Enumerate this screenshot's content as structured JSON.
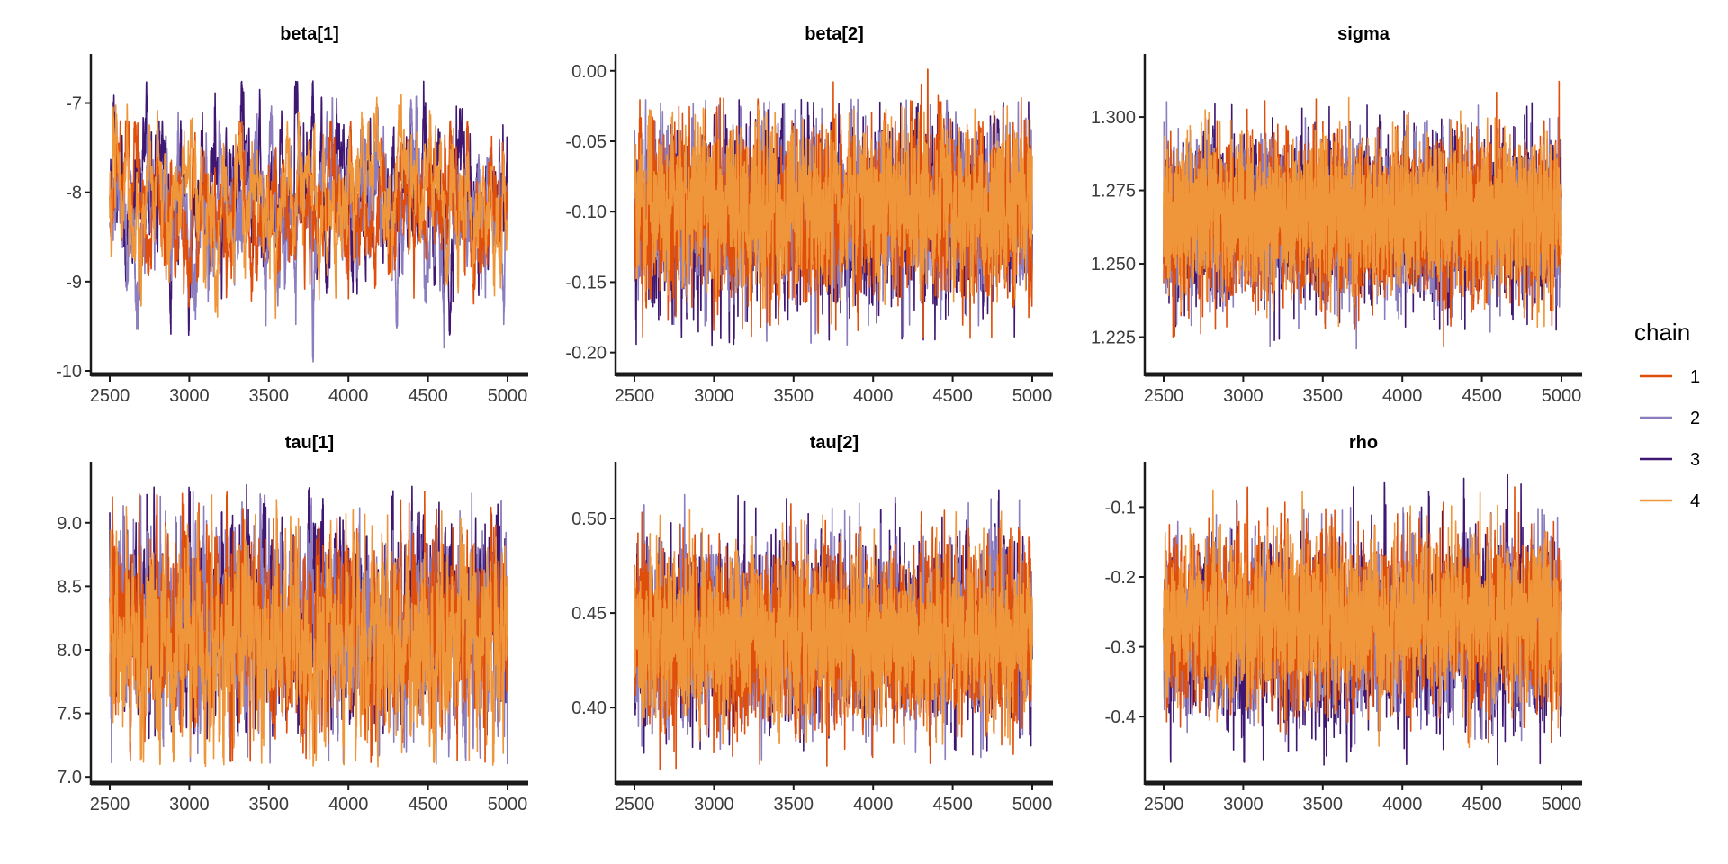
{
  "chart_data": {
    "type": "line",
    "title": "",
    "subtitle": "",
    "figure_kind": "MCMC trace plots (faceted)",
    "legend": {
      "title": "chain",
      "placement": "right",
      "entries": [
        {
          "label": "1",
          "color": "#E04E0B"
        },
        {
          "label": "2",
          "color": "#8B7DBE"
        },
        {
          "label": "3",
          "color": "#3F1671"
        },
        {
          "label": "4",
          "color": "#F0963A"
        }
      ]
    },
    "draw_order": [
      "3",
      "2",
      "1",
      "4"
    ],
    "x": {
      "label": "",
      "start": 2500,
      "end": 5000,
      "ticks": [
        2500,
        3000,
        3500,
        4000,
        4500,
        5000
      ],
      "tick_labels": [
        "2500",
        "3000",
        "3500",
        "4000",
        "4500",
        "5000"
      ]
    },
    "grid": false,
    "panels": [
      {
        "id": "beta1",
        "title": "beta[1]",
        "row": 0,
        "col": 0,
        "ylim": [
          -10,
          -6.45
        ],
        "yticks": [
          -7,
          -8,
          -9,
          -10
        ],
        "ytick_labels": [
          "-7",
          "-8",
          "-9",
          "-10"
        ],
        "series": [
          {
            "chain": "1",
            "mean": -8.15,
            "sd": 0.42,
            "min": -9.4,
            "max": -7.2,
            "autocorr": 0.93
          },
          {
            "chain": "2",
            "mean": -8.2,
            "sd": 0.48,
            "min": -9.9,
            "max": -6.9,
            "autocorr": 0.93
          },
          {
            "chain": "3",
            "mean": -8.05,
            "sd": 0.5,
            "min": -9.6,
            "max": -6.75,
            "autocorr": 0.93
          },
          {
            "chain": "4",
            "mean": -8.1,
            "sd": 0.42,
            "min": -9.55,
            "max": -6.55,
            "autocorr": 0.93
          }
        ]
      },
      {
        "id": "beta2",
        "title": "beta[2]",
        "row": 0,
        "col": 1,
        "ylim": [
          -0.213,
          0.012
        ],
        "yticks": [
          0.0,
          -0.05,
          -0.1,
          -0.15,
          -0.2
        ],
        "ytick_labels": [
          "0.00",
          "-0.05",
          "-0.10",
          "-0.15",
          "-0.20"
        ],
        "series": [
          {
            "chain": "1",
            "mean": -0.1,
            "sd": 0.03,
            "min": -0.19,
            "max": 0.005,
            "autocorr": 0.55
          },
          {
            "chain": "2",
            "mean": -0.1,
            "sd": 0.03,
            "min": -0.195,
            "max": -0.02,
            "autocorr": 0.55
          },
          {
            "chain": "3",
            "mean": -0.105,
            "sd": 0.032,
            "min": -0.195,
            "max": -0.02,
            "autocorr": 0.55
          },
          {
            "chain": "4",
            "mean": -0.095,
            "sd": 0.028,
            "min": -0.205,
            "max": -0.025,
            "autocorr": 0.55
          }
        ]
      },
      {
        "id": "sigma",
        "title": "sigma",
        "row": 0,
        "col": 2,
        "ylim": [
          1.2135,
          1.3215
        ],
        "yticks": [
          1.3,
          1.275,
          1.25,
          1.225
        ],
        "ytick_labels": [
          "1.300",
          "1.275",
          "1.250",
          "1.225"
        ],
        "series": [
          {
            "chain": "1",
            "mean": 1.266,
            "sd": 0.013,
            "min": 1.217,
            "max": 1.319,
            "autocorr": 0.1
          },
          {
            "chain": "2",
            "mean": 1.266,
            "sd": 0.013,
            "min": 1.221,
            "max": 1.31,
            "autocorr": 0.1
          },
          {
            "chain": "3",
            "mean": 1.265,
            "sd": 0.013,
            "min": 1.223,
            "max": 1.305,
            "autocorr": 0.1
          },
          {
            "chain": "4",
            "mean": 1.266,
            "sd": 0.012,
            "min": 1.228,
            "max": 1.31,
            "autocorr": 0.1
          }
        ]
      },
      {
        "id": "tau1",
        "title": "tau[1]",
        "row": 1,
        "col": 0,
        "ylim": [
          6.98,
          9.48
        ],
        "yticks": [
          9.0,
          8.5,
          8.0,
          7.5,
          7.0
        ],
        "ytick_labels": [
          "9.0",
          "8.5",
          "8.0",
          "7.5",
          "7.0"
        ],
        "series": [
          {
            "chain": "1",
            "mean": 8.15,
            "sd": 0.38,
            "min": 7.1,
            "max": 9.25,
            "autocorr": 0.75
          },
          {
            "chain": "2",
            "mean": 8.15,
            "sd": 0.4,
            "min": 7.1,
            "max": 9.25,
            "autocorr": 0.75
          },
          {
            "chain": "3",
            "mean": 8.2,
            "sd": 0.4,
            "min": 7.3,
            "max": 9.3,
            "autocorr": 0.75
          },
          {
            "chain": "4",
            "mean": 8.05,
            "sd": 0.38,
            "min": 7.08,
            "max": 9.38,
            "autocorr": 0.75
          }
        ]
      },
      {
        "id": "tau2",
        "title": "tau[2]",
        "row": 1,
        "col": 1,
        "ylim": [
          0.362,
          0.53
        ],
        "yticks": [
          0.5,
          0.45,
          0.4
        ],
        "ytick_labels": [
          "0.50",
          "0.45",
          "0.40"
        ],
        "series": [
          {
            "chain": "1",
            "mean": 0.437,
            "sd": 0.022,
            "min": 0.367,
            "max": 0.525,
            "autocorr": 0.45
          },
          {
            "chain": "2",
            "mean": 0.437,
            "sd": 0.022,
            "min": 0.372,
            "max": 0.525,
            "autocorr": 0.45
          },
          {
            "chain": "3",
            "mean": 0.44,
            "sd": 0.023,
            "min": 0.375,
            "max": 0.518,
            "autocorr": 0.45
          },
          {
            "chain": "4",
            "mean": 0.437,
            "sd": 0.021,
            "min": 0.38,
            "max": 0.505,
            "autocorr": 0.45
          }
        ]
      },
      {
        "id": "rho",
        "title": "rho",
        "row": 1,
        "col": 2,
        "ylim": [
          -0.49,
          -0.035
        ],
        "yticks": [
          -0.1,
          -0.2,
          -0.3,
          -0.4
        ],
        "ytick_labels": [
          "-0.1",
          "-0.2",
          "-0.3",
          "-0.4"
        ],
        "series": [
          {
            "chain": "1",
            "mean": -0.26,
            "sd": 0.06,
            "min": -0.44,
            "max": -0.07,
            "autocorr": 0.5
          },
          {
            "chain": "2",
            "mean": -0.27,
            "sd": 0.06,
            "min": -0.44,
            "max": -0.1,
            "autocorr": 0.5
          },
          {
            "chain": "3",
            "mean": -0.285,
            "sd": 0.065,
            "min": -0.47,
            "max": -0.05,
            "autocorr": 0.5
          },
          {
            "chain": "4",
            "mean": -0.26,
            "sd": 0.055,
            "min": -0.445,
            "max": -0.075,
            "autocorr": 0.5
          }
        ]
      }
    ]
  }
}
